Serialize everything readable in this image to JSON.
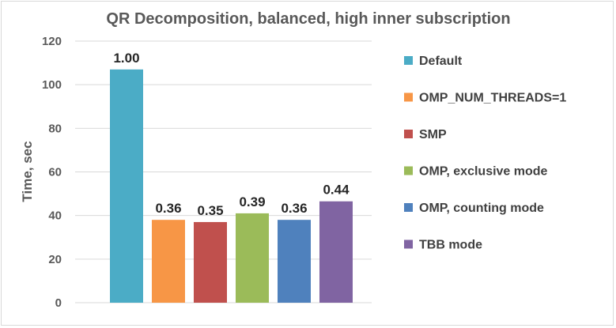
{
  "chart_data": {
    "type": "bar",
    "title": "QR Decomposition, balanced, high inner subscription",
    "xlabel": "",
    "ylabel": "Time, sec",
    "ylim": [
      0,
      120
    ],
    "yticks": [
      0,
      20,
      40,
      60,
      80,
      100,
      120
    ],
    "grid": true,
    "legend_position": "right",
    "series": [
      {
        "name": "Default",
        "value": 107,
        "label": "1.00",
        "color": "#4bacc6"
      },
      {
        "name": "OMP_NUM_THREADS=1",
        "value": 38,
        "label": "0.36",
        "color": "#f79646"
      },
      {
        "name": "SMP",
        "value": 37,
        "label": "0.35",
        "color": "#c0504d"
      },
      {
        "name": "OMP, exclusive mode",
        "value": 41,
        "label": "0.39",
        "color": "#9bbb59"
      },
      {
        "name": "OMP, counting mode",
        "value": 38,
        "label": "0.36",
        "color": "#4f81bd"
      },
      {
        "name": "TBB mode",
        "value": 46.5,
        "label": "0.44",
        "color": "#8064a2"
      }
    ]
  }
}
